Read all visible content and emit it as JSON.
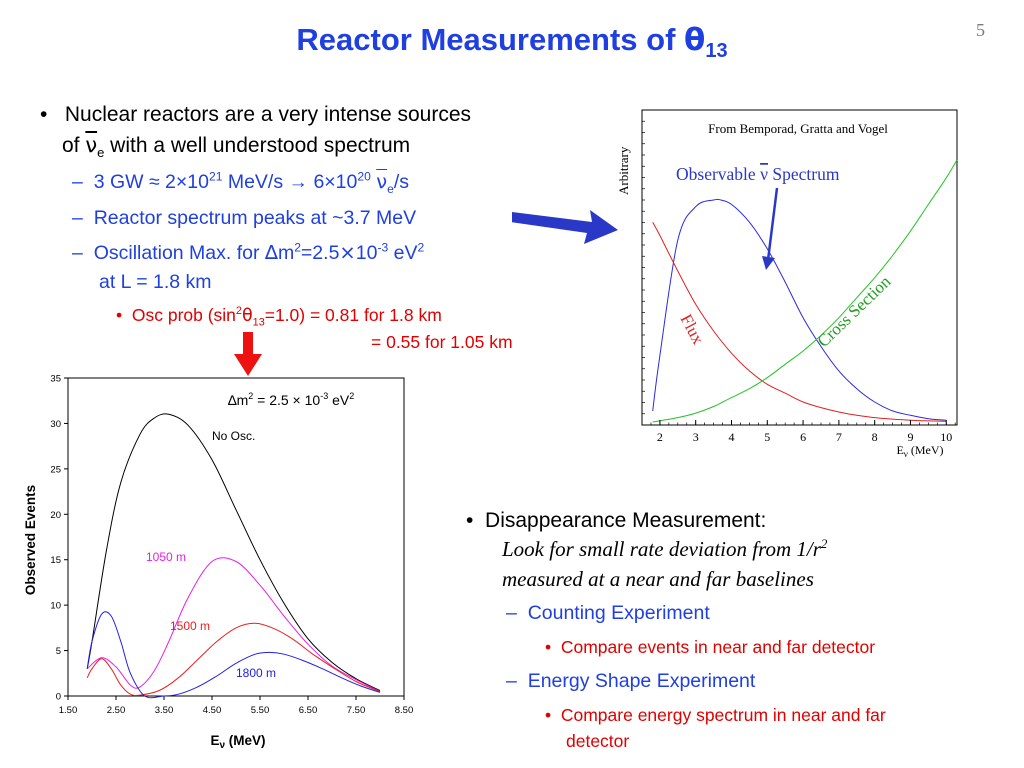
{
  "slide": {
    "title": "Reactor Measurements of ",
    "title_symbol": "θ",
    "title_subscript": "13",
    "page_number": "5"
  },
  "left_bullets": {
    "b1_line1": "Nuclear reactors are a very intense sources",
    "b1_line2_pre": "of ",
    "b1_nu": "ν",
    "b1_nu_sub": "e",
    "b1_line2_post": " with a well understood spectrum",
    "s1_pre": "3 GW ≈ 2×10",
    "s1_exp1": "21",
    "s1_mid": " MeV/s → 6×10",
    "s1_exp2": "20",
    "s1_nu": "ν",
    "s1_nu_sub": "e",
    "s1_post": "/s",
    "s2": "Reactor spectrum peaks at ~3.7 MeV",
    "s3_a": "Oscillation Max. for ",
    "s3_delta": "∆",
    "s3_b": "m",
    "s3_exp1": "2",
    "s3_c": "=2.5",
    "s3_times": "×",
    "s3_d": "10",
    "s3_exp2": "-3",
    "s3_e": " eV",
    "s3_exp3": "2",
    "s3_line2": "at L = 1.8 km",
    "t1_a": "Osc prob (sin",
    "t1_exp": "2",
    "t1_theta": "θ",
    "t1_sub": "13",
    "t1_b": "=1.0) = 0.81 for 1.8 km",
    "t1_line2": "= 0.55 for 1.05 km"
  },
  "right_bullets": {
    "b1": "Disappearance Measurement:",
    "italic1_pre": "Look for small rate deviation from 1/r",
    "italic1_exp": "2",
    "italic2": "measured at a near and far baselines",
    "s1": "Counting Experiment",
    "s1_t1": "Compare events in near and far detector",
    "s2": "Energy Shape Experiment",
    "s2_t1_line1": "Compare energy spectrum in near and far",
    "s2_t1_line2": "detector"
  },
  "colors": {
    "title_blue": "#1f3fe0",
    "bullet_red": "#e00000",
    "arrow_blue": "#2a38c8",
    "arrow_red": "#ee1111"
  },
  "chart_data": [
    {
      "type": "line",
      "title": "",
      "annotation": "From Bemporad, Gratta and Vogel",
      "xlabel_main": "E",
      "xlabel_sub": "ν",
      "xlabel_unit": " (MeV)",
      "ylabel": "Arbitrary",
      "xlim": [
        1.5,
        10.3
      ],
      "x_ticks": [
        2,
        3,
        4,
        5,
        6,
        7,
        8,
        9,
        10
      ],
      "labels": {
        "spectrum": "Observable ",
        "spectrum_nu": "ν",
        "spectrum_post": "  Spectrum",
        "flux": "Flux",
        "cross_section": "Cross Section"
      },
      "series": [
        {
          "key": "spectrum",
          "color": "#2a2ae0",
          "x": [
            1.8,
            2.0,
            2.5,
            3.0,
            3.5,
            3.7,
            4.0,
            4.5,
            5.0,
            5.5,
            6.0,
            6.5,
            7.0,
            7.5,
            8.0,
            8.5,
            9.0,
            9.5,
            10.0
          ],
          "y": [
            0.05,
            0.3,
            0.82,
            0.97,
            1.0,
            1.0,
            0.98,
            0.9,
            0.78,
            0.63,
            0.47,
            0.34,
            0.23,
            0.15,
            0.09,
            0.05,
            0.03,
            0.015,
            0.008
          ]
        },
        {
          "key": "flux",
          "color": "#e02020",
          "x": [
            1.8,
            2.0,
            2.5,
            3.0,
            3.5,
            4.0,
            4.5,
            5.0,
            5.5,
            6.0,
            6.5,
            7.0,
            7.5,
            8.0,
            8.5,
            9.0,
            9.5,
            10.0
          ],
          "y": [
            0.9,
            0.84,
            0.68,
            0.53,
            0.41,
            0.31,
            0.23,
            0.17,
            0.13,
            0.09,
            0.065,
            0.045,
            0.03,
            0.02,
            0.013,
            0.008,
            0.005,
            0.003
          ]
        },
        {
          "key": "cross_section",
          "color": "#22c422",
          "x": [
            1.8,
            2.5,
            3.0,
            3.5,
            4.0,
            4.5,
            5.0,
            5.5,
            6.0,
            6.5,
            7.0,
            7.5,
            8.0,
            8.5,
            9.0,
            9.5,
            10.0,
            10.3
          ],
          "y": [
            0.0,
            0.02,
            0.04,
            0.07,
            0.11,
            0.15,
            0.2,
            0.26,
            0.32,
            0.39,
            0.47,
            0.56,
            0.65,
            0.75,
            0.86,
            0.98,
            1.1,
            1.18
          ]
        }
      ]
    },
    {
      "type": "line",
      "title": "",
      "annotation_pre": "∆m",
      "annotation_exp1": "2",
      "annotation_mid": " = 2.5 × 10",
      "annotation_exp2": "-3",
      "annotation_post": " eV",
      "annotation_exp3": "2",
      "xlabel_main": "E",
      "xlabel_sub": "ν",
      "xlabel_unit": " (MeV)",
      "ylabel": "Observed Events",
      "xlim": [
        1.5,
        8.5
      ],
      "ylim": [
        0,
        35
      ],
      "x_ticks": [
        "1.50",
        "2.50",
        "3.50",
        "4.50",
        "5.50",
        "6.50",
        "7.50",
        "8.50"
      ],
      "y_ticks": [
        0,
        5,
        10,
        15,
        20,
        25,
        30,
        35
      ],
      "series": [
        {
          "name": "No Osc.",
          "color": "#000000",
          "x": [
            1.9,
            2.0,
            2.3,
            2.6,
            3.0,
            3.3,
            3.6,
            4.0,
            4.5,
            5.0,
            5.5,
            6.0,
            6.5,
            7.0,
            7.5,
            8.0
          ],
          "y": [
            3.0,
            6.0,
            16.0,
            23.5,
            28.8,
            30.6,
            31.0,
            29.8,
            26.0,
            20.5,
            15.0,
            10.2,
            6.3,
            3.7,
            1.9,
            0.6
          ]
        },
        {
          "name": "1050 m",
          "color": "#e81ee8",
          "x": [
            1.9,
            2.2,
            2.5,
            2.8,
            3.0,
            3.3,
            3.6,
            4.0,
            4.5,
            5.0,
            5.5,
            6.0,
            6.5,
            7.0,
            7.5,
            8.0
          ],
          "y": [
            3.0,
            4.2,
            3.2,
            1.2,
            1.0,
            2.8,
            6.0,
            10.8,
            14.8,
            14.8,
            12.2,
            8.8,
            5.7,
            3.3,
            1.8,
            0.5
          ]
        },
        {
          "name": "1500 m",
          "color": "#e82020",
          "x": [
            1.9,
            2.0,
            2.2,
            2.4,
            2.6,
            2.8,
            3.0,
            3.4,
            3.8,
            4.2,
            4.6,
            5.0,
            5.4,
            5.8,
            6.2,
            6.6,
            7.0,
            7.5,
            8.0
          ],
          "y": [
            2.0,
            3.0,
            4.1,
            3.0,
            1.2,
            0.2,
            0.1,
            0.6,
            2.0,
            4.0,
            6.0,
            7.5,
            8.0,
            7.4,
            6.2,
            4.6,
            3.2,
            1.6,
            0.5
          ]
        },
        {
          "name": "1800 m",
          "color": "#2020e8",
          "x": [
            1.9,
            2.0,
            2.2,
            2.4,
            2.6,
            2.8,
            3.1,
            3.5,
            3.8,
            4.2,
            4.6,
            5.0,
            5.4,
            5.7,
            6.0,
            6.4,
            6.8,
            7.2,
            7.6,
            8.0
          ],
          "y": [
            3.0,
            6.0,
            9.0,
            8.8,
            6.0,
            2.5,
            0.0,
            0.0,
            0.2,
            1.0,
            2.2,
            3.6,
            4.6,
            4.8,
            4.6,
            3.9,
            3.0,
            2.0,
            1.1,
            0.4
          ]
        }
      ]
    }
  ]
}
